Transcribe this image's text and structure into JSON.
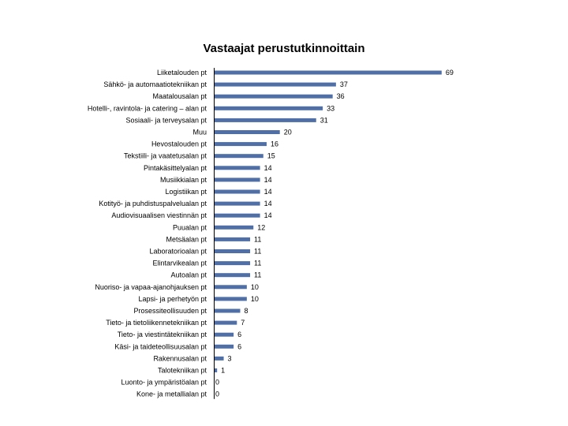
{
  "chart_data": {
    "type": "bar",
    "orientation": "horizontal",
    "title": "Vastaajat perustutkinnoittain",
    "xlabel": "",
    "ylabel": "",
    "xlim": [
      0,
      70
    ],
    "grid": false,
    "legend": "none",
    "bar_color": "#4f6fa6",
    "categories": [
      "Liiketalouden pt",
      "Sähkö- ja automaatiotekniikan pt",
      "Maatalousalan pt",
      "Hotelli-, ravintola- ja catering – alan pt",
      "Sosiaali- ja terveysalan pt",
      "Muu",
      "Hevostalouden pt",
      "Tekstiili- ja vaatetusalan pt",
      "Pintakäsittelyalan pt",
      "Musiikkialan pt",
      "Logistiikan pt",
      "Kotityö- ja puhdistuspalvelualan pt",
      "Audiovisuaalisen viestinnän pt",
      "Puualan pt",
      "Metsäalan pt",
      "Laboratorioalan pt",
      "Elintarvikealan pt",
      "Autoalan pt",
      "Nuoriso- ja vapaa-ajanohjauksen pt",
      "Lapsi- ja perhetyön pt",
      "Prosessiteollisuuden pt",
      "Tieto- ja tietoliikennetekniikan pt",
      "Tieto- ja viestintätekniikan pt",
      "Käsi- ja taideteollisuusalan pt",
      "Rakennusalan pt",
      "Talotekniikan pt",
      "Luonto- ja ympäristöalan pt",
      "Kone- ja metallialan pt"
    ],
    "values": [
      69,
      37,
      36,
      33,
      31,
      20,
      16,
      15,
      14,
      14,
      14,
      14,
      14,
      12,
      11,
      11,
      11,
      11,
      10,
      10,
      8,
      7,
      6,
      6,
      3,
      1,
      0,
      0
    ]
  }
}
